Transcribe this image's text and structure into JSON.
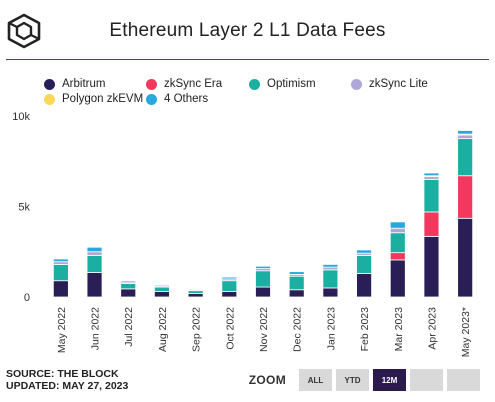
{
  "header": {
    "title": "Ethereum Layer 2 L1 Data Fees",
    "logo": "cube-icon"
  },
  "legend": [
    {
      "label": "Arbitrum",
      "color": "#2a1e57"
    },
    {
      "label": "zkSync Era",
      "color": "#f2385e"
    },
    {
      "label": "Optimism",
      "color": "#1aafa0"
    },
    {
      "label": "zkSync Lite",
      "color": "#ada8d6"
    },
    {
      "label": "Polygon zkEVM",
      "color": "#f8d75a"
    },
    {
      "label": "4 Others",
      "color": "#27a8e0"
    }
  ],
  "chart_data": {
    "type": "bar",
    "stacked": true,
    "categories": [
      "May 2022",
      "Jun 2022",
      "Jul 2022",
      "Aug 2022",
      "Sep 2022",
      "Oct 2022",
      "Nov 2022",
      "Dec 2022",
      "Jan 2023",
      "Feb 2023",
      "Mar 2023",
      "Apr 2023",
      "May 2023*"
    ],
    "y_ticks": [
      0,
      5000,
      10000
    ],
    "y_tick_labels": [
      "0",
      "5k",
      "10k"
    ],
    "ylim": [
      0,
      10000
    ],
    "grid": false,
    "series": [
      {
        "name": "Arbitrum",
        "color": "#2a1e57",
        "values": [
          900,
          1350,
          450,
          300,
          200,
          300,
          550,
          400,
          500,
          1300,
          2050,
          3350,
          4350
        ]
      },
      {
        "name": "zkSync Era",
        "color": "#f2385e",
        "values": [
          0,
          0,
          0,
          0,
          0,
          0,
          0,
          0,
          0,
          0,
          400,
          1350,
          2350
        ]
      },
      {
        "name": "Optimism",
        "color": "#1aafa0",
        "values": [
          900,
          950,
          300,
          250,
          150,
          600,
          900,
          750,
          1000,
          1000,
          1100,
          1800,
          2050
        ]
      },
      {
        "name": "zkSync Lite",
        "color": "#ada8d6",
        "values": [
          150,
          200,
          80,
          60,
          50,
          100,
          120,
          100,
          150,
          120,
          250,
          150,
          200
        ]
      },
      {
        "name": "Polygon zkEVM",
        "color": "#f8d75a",
        "values": [
          0,
          0,
          0,
          0,
          0,
          0,
          0,
          0,
          0,
          0,
          0,
          50,
          50
        ]
      },
      {
        "name": "4 Others",
        "color": "#27a8e0",
        "values": [
          150,
          250,
          70,
          60,
          50,
          100,
          130,
          150,
          150,
          180,
          350,
          150,
          200
        ]
      }
    ]
  },
  "footer": {
    "source": "SOURCE: THE BLOCK",
    "updated": "UPDATED: MAY 27, 2023",
    "zoom_label": "ZOOM",
    "zoom_buttons": [
      "ALL",
      "YTD",
      "12M",
      "",
      ""
    ],
    "zoom_active": "12M"
  }
}
